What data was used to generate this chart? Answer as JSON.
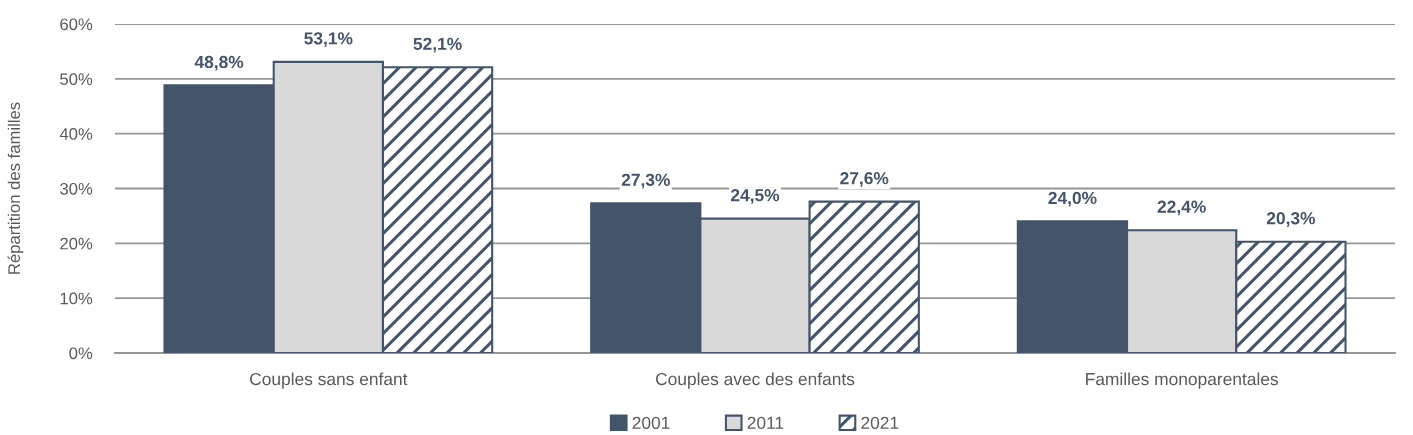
{
  "chart_data": {
    "type": "bar",
    "ylabel": "Répartition des familles",
    "categories": [
      "Couples sans enfant",
      "Couples avec des enfants",
      "Familles monoparentales"
    ],
    "series": [
      {
        "name": "2001",
        "color": "#44546a",
        "values": [
          48.8,
          27.3,
          24.0
        ],
        "value_labels": [
          "48,8%",
          "27,3%",
          "24,0%"
        ]
      },
      {
        "name": "2011",
        "color": "#d9d9d9",
        "values": [
          53.1,
          24.5,
          22.4
        ],
        "value_labels": [
          "53,1%",
          "24,5%",
          "22,4%"
        ]
      },
      {
        "name": "2021",
        "color": "#44546a",
        "values": [
          52.1,
          27.6,
          20.3
        ],
        "value_labels": [
          "52,1%",
          "27,6%",
          "20,3%"
        ]
      }
    ],
    "ylim": [
      0,
      60
    ],
    "yticks": [
      {
        "value": 0,
        "label": "0%"
      },
      {
        "value": 10,
        "label": "10%"
      },
      {
        "value": 20,
        "label": "20%"
      },
      {
        "value": 30,
        "label": "30%"
      },
      {
        "value": 40,
        "label": "40%"
      },
      {
        "value": 50,
        "label": "50%"
      },
      {
        "value": 60,
        "label": "60%"
      }
    ],
    "grid": "y",
    "legend": "bottom"
  }
}
